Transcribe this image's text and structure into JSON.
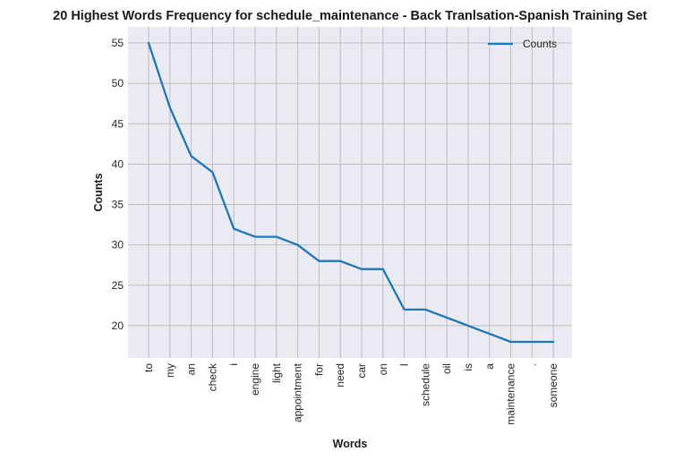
{
  "chart_data": {
    "type": "line",
    "title": "20 Highest Words Frequency for schedule_maintenance - Back Tranlsation-Spanish Training Set",
    "xlabel": "Words",
    "ylabel": "Counts",
    "categories": [
      "to",
      "my",
      "an",
      "check",
      "i",
      "engine",
      "light",
      "appointment",
      "for",
      "need",
      "car",
      "on",
      "I",
      "schedule",
      "oil",
      "is",
      "a",
      "maintenance",
      ".",
      "someone"
    ],
    "series": [
      {
        "name": "Counts",
        "values": [
          55,
          47,
          41,
          39,
          32,
          31,
          31,
          30,
          28,
          28,
          27,
          27,
          22,
          22,
          21,
          20,
          19,
          18,
          18,
          18
        ],
        "color": "#1f77b4"
      }
    ],
    "yticks": [
      20,
      25,
      30,
      35,
      40,
      45,
      50,
      55
    ],
    "ylim": [
      16,
      57
    ],
    "grid": true,
    "legend": "top-right",
    "background_color": "#eaeaf2",
    "grid_color": "#bdbdbd"
  }
}
